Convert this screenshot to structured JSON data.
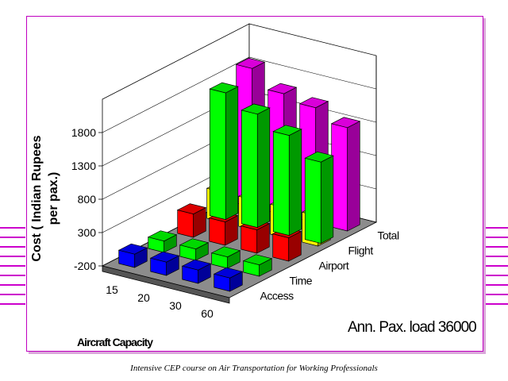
{
  "chart_data": {
    "type": "bar3d",
    "title": "",
    "xlabel": "Aircraft Capacity",
    "ylabel": "Cost ( Indian Rupees per pax.)",
    "zlabel": "",
    "x_categories": [
      "15",
      "20",
      "30",
      "60"
    ],
    "z_categories": [
      "Access",
      "Time",
      "Airport",
      "Flight",
      "Total"
    ],
    "yticks": [
      "-200",
      "300",
      "800",
      "1300",
      "1800"
    ],
    "ylim": [
      -200,
      2300
    ],
    "grid": true,
    "series": [
      {
        "name": "Access",
        "color": "#0000ff",
        "values": [
          50,
          50,
          50,
          50
        ]
      },
      {
        "name": "Time",
        "color": "#00ff00",
        "values": [
          20,
          20,
          20,
          20
        ]
      },
      {
        "name": "Airport",
        "color": "#ff0000",
        "values": [
          200,
          200,
          200,
          200
        ]
      },
      {
        "name": "Flight",
        "color": "#ffff00",
        "values": [
          300,
          300,
          300,
          300
        ]
      },
      {
        "name": "Total",
        "color": "#ff00ff",
        "values": [
          1880,
          1620,
          1530,
          1350
        ]
      }
    ],
    "bar_overrides_note": "",
    "annotation": "Ann. Pax. load  36000"
  },
  "bars_extra": {
    "green_on_back": [
      1700,
      1500,
      1300,
      1020
    ]
  },
  "footer": "Intensive CEP course on Air Transportation for Working  Professionals"
}
